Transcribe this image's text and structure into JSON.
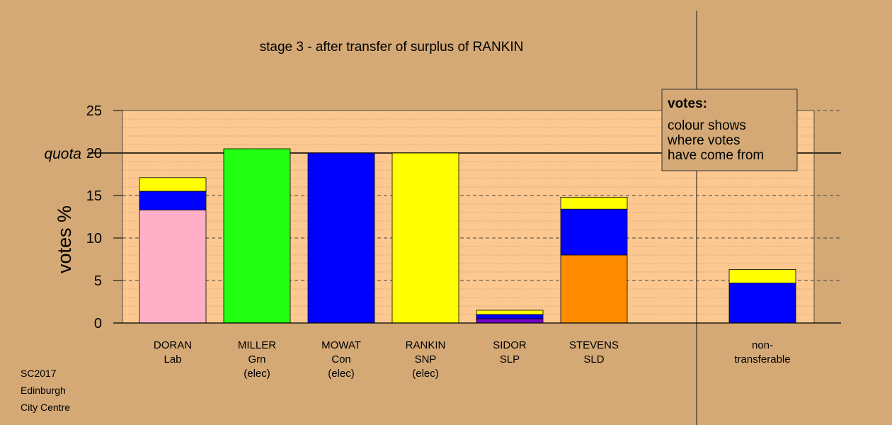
{
  "chart_data": {
    "type": "bar",
    "stacked": true,
    "title": "stage 3 - after transfer of surplus of RANKIN",
    "ylabel": "votes %",
    "ylim": [
      0,
      25
    ],
    "yticks": [
      0,
      5,
      10,
      15,
      20,
      25
    ],
    "quota": {
      "value": 20,
      "label": "quota"
    },
    "grid": "dotted minor lines every 1, dashed at 5s",
    "colors": {
      "background": "#d4a976",
      "plot_background": "#fdc88f",
      "Lab": "#ffb0c8",
      "Grn": "#22ff11",
      "Con": "#0000ff",
      "SNP": "#ffff00",
      "SLP": "#7a00cc",
      "SLD": "#ff8c00"
    },
    "categories": [
      {
        "name": "DORAN",
        "party": "Lab",
        "status": ""
      },
      {
        "name": "MILLER",
        "party": "Grn",
        "status": "(elec)"
      },
      {
        "name": "MOWAT",
        "party": "Con",
        "status": "(elec)"
      },
      {
        "name": "RANKIN",
        "party": "SNP",
        "status": "(elec)"
      },
      {
        "name": "SIDOR",
        "party": "SLP",
        "status": ""
      },
      {
        "name": "STEVENS",
        "party": "SLD",
        "status": ""
      },
      {
        "name": "",
        "party": "",
        "status": ""
      },
      {
        "name": "non-",
        "party": "transferable",
        "status": ""
      }
    ],
    "stacks": [
      [
        {
          "source": "Lab",
          "value": 13.3
        },
        {
          "source": "Con",
          "value": 2.2
        },
        {
          "source": "SNP",
          "value": 1.6
        }
      ],
      [
        {
          "source": "Grn",
          "value": 20.5
        }
      ],
      [
        {
          "source": "Con",
          "value": 20.0
        }
      ],
      [
        {
          "source": "SNP",
          "value": 20.0
        }
      ],
      [
        {
          "source": "SLP",
          "value": 0.5
        },
        {
          "source": "Con",
          "value": 0.5
        },
        {
          "source": "SNP",
          "value": 0.5
        }
      ],
      [
        {
          "source": "SLD",
          "value": 8.0
        },
        {
          "source": "Con",
          "value": 5.4
        },
        {
          "source": "SNP",
          "value": 1.4
        }
      ],
      [],
      [
        {
          "source": "Con",
          "value": 4.7
        },
        {
          "source": "SNP",
          "value": 1.6
        }
      ]
    ],
    "legend": {
      "placement": "top-right",
      "heading": "votes:",
      "lines": [
        "colour shows",
        "where votes",
        "have come from"
      ]
    }
  },
  "footer": {
    "lines": [
      "SC2017",
      "Edinburgh",
      "City Centre"
    ]
  }
}
